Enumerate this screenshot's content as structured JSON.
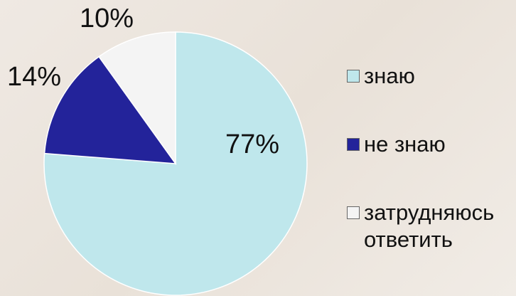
{
  "chart_data": {
    "type": "pie",
    "categories": [
      "знаю",
      "не знаю",
      "затрудняюсь ответить"
    ],
    "values": [
      77,
      14,
      10
    ],
    "value_labels": [
      "77%",
      "14%",
      "10%"
    ],
    "colors": [
      "#bfe7ec",
      "#23239a",
      "#f4f4f4"
    ]
  }
}
